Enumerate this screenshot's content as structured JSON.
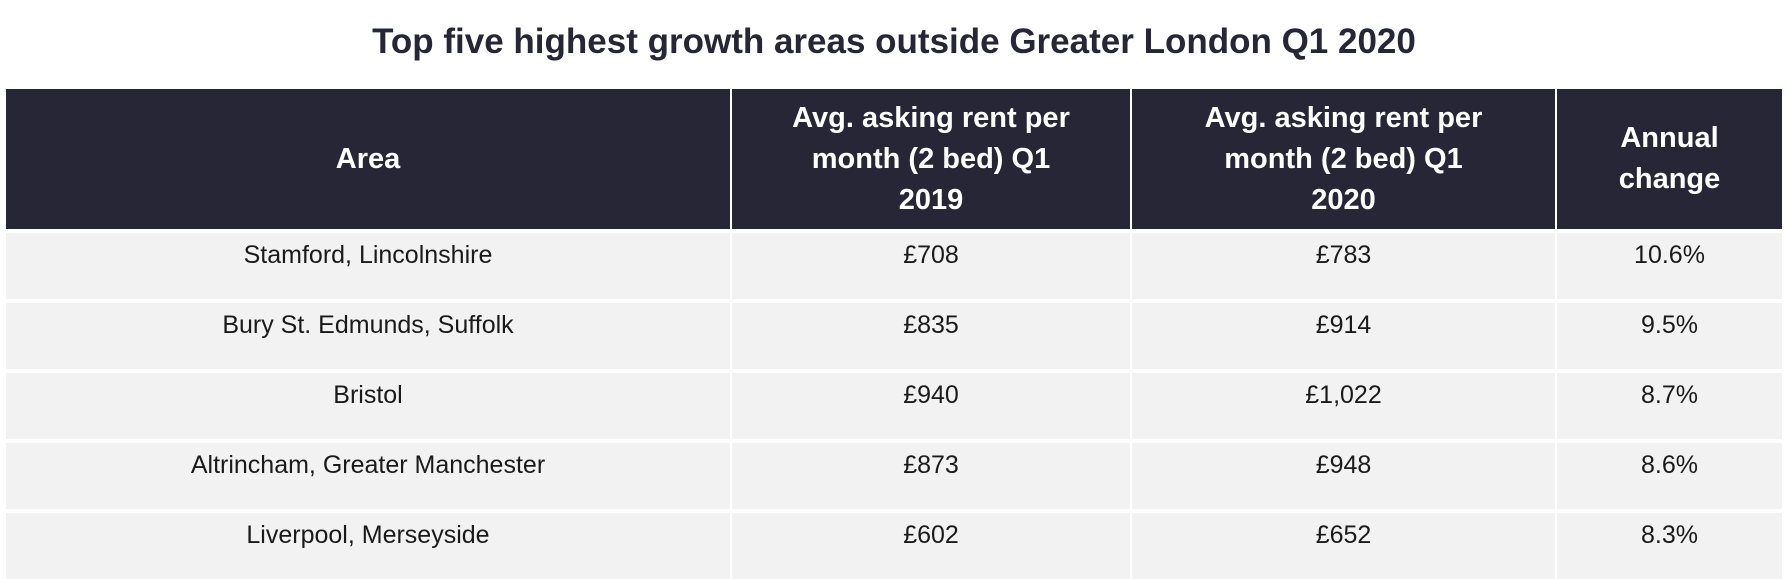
{
  "title": "Top five highest growth areas outside Greater London Q1 2020",
  "table": {
    "headers": [
      "Area",
      "Avg. asking rent per month (2 bed) Q1 2019",
      "Avg. asking rent per month (2 bed) Q1 2020",
      "Annual change"
    ],
    "rows": [
      [
        "Stamford, Lincolnshire",
        "£708",
        "£783",
        "10.6%"
      ],
      [
        "Bury St. Edmunds, Suffolk",
        "£835",
        "£914",
        "9.5%"
      ],
      [
        "Bristol",
        "£940",
        "£1,022",
        "8.7%"
      ],
      [
        "Altrincham, Greater Manchester",
        "£873",
        "£948",
        "8.6%"
      ],
      [
        "Liverpool, Merseyside",
        "£602",
        "£652",
        "8.3%"
      ]
    ]
  },
  "colors": {
    "header_bg": "#262637",
    "row_bg": "#f2f2f2",
    "title": "#262637"
  }
}
